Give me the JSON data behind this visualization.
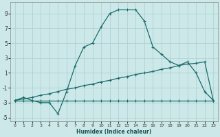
{
  "xlabel": "Humidex (Indice chaleur)",
  "bg_color": "#cce8e8",
  "line_color": "#1a6b6b",
  "grid_color": "#aacfcf",
  "xlim": [
    -0.5,
    23.5
  ],
  "ylim": [
    -5.5,
    10.5
  ],
  "xticks": [
    0,
    1,
    2,
    3,
    4,
    5,
    6,
    7,
    8,
    9,
    10,
    11,
    12,
    13,
    14,
    15,
    16,
    17,
    18,
    19,
    20,
    21,
    22,
    23
  ],
  "yticks": [
    -5,
    -3,
    -1,
    1,
    3,
    5,
    7,
    9
  ],
  "line_flat_x": [
    0,
    1,
    2,
    3,
    4,
    5,
    6,
    7,
    8,
    9,
    10,
    11,
    12,
    13,
    14,
    15,
    16,
    17,
    18,
    19,
    20,
    21,
    22,
    23
  ],
  "line_flat_y": [
    -2.7,
    -2.7,
    -2.7,
    -2.7,
    -2.7,
    -2.7,
    -2.7,
    -2.7,
    -2.7,
    -2.7,
    -2.7,
    -2.7,
    -2.7,
    -2.7,
    -2.7,
    -2.7,
    -2.7,
    -2.7,
    -2.7,
    -2.7,
    -2.7,
    -2.7,
    -2.7,
    -2.7
  ],
  "line_diag_x": [
    0,
    1,
    2,
    3,
    4,
    5,
    6,
    7,
    8,
    9,
    10,
    11,
    12,
    13,
    14,
    15,
    16,
    17,
    18,
    19,
    20,
    21,
    22,
    23
  ],
  "line_diag_y": [
    -2.7,
    -2.5,
    -2.3,
    -2.0,
    -1.8,
    -1.5,
    -1.2,
    -1.0,
    -0.7,
    -0.5,
    -0.2,
    0.0,
    0.3,
    0.5,
    0.8,
    1.0,
    1.2,
    1.5,
    1.7,
    2.0,
    2.2,
    2.3,
    2.5,
    -2.7
  ],
  "line_main_x": [
    0,
    1,
    2,
    3,
    4,
    5,
    6,
    7,
    8,
    9,
    10,
    11,
    12,
    13,
    14,
    15,
    16,
    17,
    18,
    19,
    20,
    21,
    22,
    23
  ],
  "line_main_y": [
    -2.7,
    -2.3,
    -2.7,
    -3.0,
    -3.0,
    -4.5,
    -1.5,
    2.0,
    4.5,
    5.0,
    7.2,
    9.0,
    9.5,
    9.5,
    9.5,
    8.0,
    4.5,
    3.5,
    2.5,
    2.0,
    2.5,
    1.0,
    -1.5,
    -2.7
  ]
}
